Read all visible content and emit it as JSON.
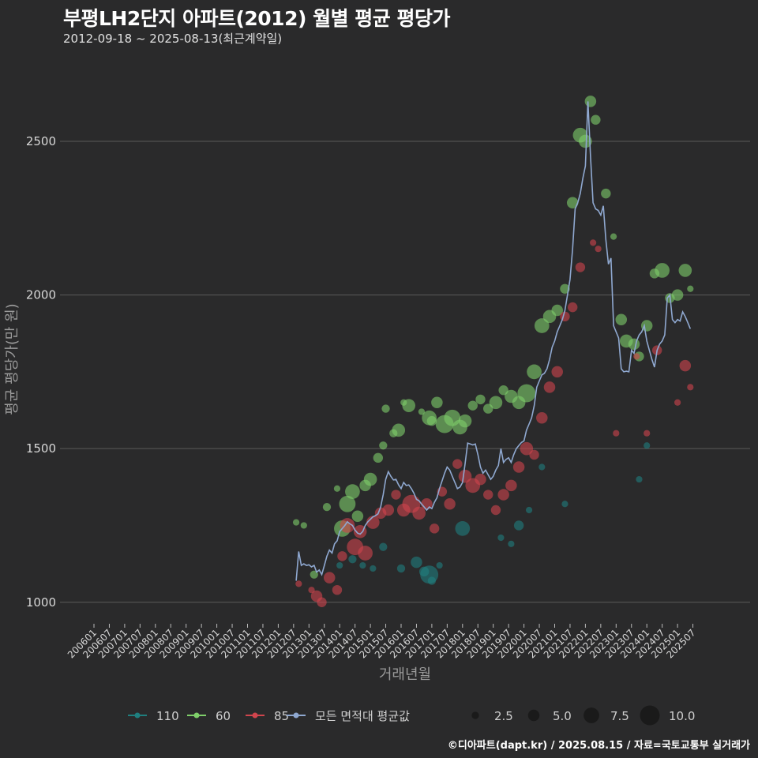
{
  "title": "부평LH2단지 아파트(2012) 월별 평균 평당가",
  "subtitle": "2012-09-18 ~ 2025-08-13(최근계약일)",
  "caption": "©디아파트(dapt.kr) / 2025.08.15 / 자료=국토교통부 실거래가",
  "colors": {
    "background": "#2a2a2b",
    "grid": "#5a5a5a",
    "s110": "#1f7f7f",
    "s60": "#7fcf6a",
    "s85": "#d0454d",
    "avg": "#8fa8d0"
  },
  "chart_data": {
    "type": "scatter",
    "xlabel": "거래년월",
    "ylabel": "평균 평당가(만 원)",
    "yticks": [
      1000,
      1500,
      2000,
      2500
    ],
    "ylim": [
      930,
      2780
    ],
    "x_tick_labels": [
      "200601",
      "200607",
      "200701",
      "200707",
      "200801",
      "200807",
      "200901",
      "200907",
      "201001",
      "201007",
      "201101",
      "201107",
      "201201",
      "201207",
      "201301",
      "201307",
      "201401",
      "201407",
      "201501",
      "201507",
      "201601",
      "201607",
      "201701",
      "201707",
      "201801",
      "201807",
      "201901",
      "201907",
      "202001",
      "202007",
      "202101",
      "202107",
      "202201",
      "202207",
      "202301",
      "202307",
      "202401",
      "202407",
      "202501",
      "202507"
    ],
    "legend_series": [
      {
        "name": "110",
        "color": "#1f7f7f"
      },
      {
        "name": "60",
        "color": "#7fcf6a"
      },
      {
        "name": "85",
        "color": "#d0454d"
      },
      {
        "name": "모든 면적대 평균값",
        "color": "#8fa8d0"
      }
    ],
    "legend_sizes": [
      "2.5",
      "5.0",
      "7.5",
      "10.0"
    ],
    "size_values": [
      2.5,
      5.0,
      7.5,
      10.0
    ],
    "series": [
      {
        "name": "110",
        "points": [
          [
            "2014-01",
            1120,
            2
          ],
          [
            "2014-06",
            1140,
            3
          ],
          [
            "2014-10",
            1120,
            2
          ],
          [
            "2015-02",
            1110,
            2
          ],
          [
            "2015-06",
            1180,
            3
          ],
          [
            "2016-01",
            1110,
            3
          ],
          [
            "2016-07",
            1130,
            5
          ],
          [
            "2016-10",
            1100,
            4
          ],
          [
            "2016-12",
            1090,
            9
          ],
          [
            "2017-01",
            1070,
            3
          ],
          [
            "2017-04",
            1120,
            2
          ],
          [
            "2018-01",
            1240,
            7
          ],
          [
            "2019-04",
            1210,
            2
          ],
          [
            "2019-08",
            1190,
            2
          ],
          [
            "2019-11",
            1250,
            4
          ],
          [
            "2020-03",
            1300,
            2
          ],
          [
            "2020-08",
            1440,
            2
          ],
          [
            "2021-05",
            1320,
            2
          ],
          [
            "2023-10",
            1400,
            2
          ],
          [
            "2024-01",
            1510,
            2
          ]
        ]
      },
      {
        "name": "60",
        "points": [
          [
            "2012-08",
            1260,
            2
          ],
          [
            "2012-11",
            1250,
            2
          ],
          [
            "2013-03",
            1090,
            3
          ],
          [
            "2013-08",
            1310,
            3
          ],
          [
            "2013-12",
            1370,
            2
          ],
          [
            "2014-02",
            1240,
            8
          ],
          [
            "2014-04",
            1320,
            8
          ],
          [
            "2014-06",
            1360,
            7
          ],
          [
            "2014-08",
            1280,
            5
          ],
          [
            "2014-11",
            1380,
            5
          ],
          [
            "2015-01",
            1400,
            6
          ],
          [
            "2015-04",
            1470,
            4
          ],
          [
            "2015-06",
            1510,
            3
          ],
          [
            "2015-07",
            1630,
            3
          ],
          [
            "2015-10",
            1550,
            3
          ],
          [
            "2015-12",
            1560,
            6
          ],
          [
            "2016-02",
            1650,
            2
          ],
          [
            "2016-04",
            1640,
            6
          ],
          [
            "2016-09",
            1620,
            2
          ],
          [
            "2016-12",
            1600,
            7
          ],
          [
            "2017-01",
            1590,
            4
          ],
          [
            "2017-03",
            1650,
            5
          ],
          [
            "2017-06",
            1580,
            9
          ],
          [
            "2017-09",
            1600,
            8
          ],
          [
            "2017-12",
            1570,
            7
          ],
          [
            "2018-02",
            1590,
            6
          ],
          [
            "2018-05",
            1640,
            4
          ],
          [
            "2018-08",
            1660,
            4
          ],
          [
            "2018-11",
            1630,
            4
          ],
          [
            "2019-02",
            1650,
            6
          ],
          [
            "2019-05",
            1690,
            4
          ],
          [
            "2019-08",
            1670,
            6
          ],
          [
            "2019-11",
            1650,
            6
          ],
          [
            "2020-02",
            1680,
            9
          ],
          [
            "2020-05",
            1750,
            7
          ],
          [
            "2020-08",
            1900,
            7
          ],
          [
            "2020-11",
            1930,
            6
          ],
          [
            "2021-02",
            1950,
            5
          ],
          [
            "2021-05",
            2020,
            4
          ],
          [
            "2021-08",
            2300,
            5
          ],
          [
            "2021-11",
            2520,
            7
          ],
          [
            "2022-01",
            2500,
            6
          ],
          [
            "2022-03",
            2630,
            5
          ],
          [
            "2022-05",
            2570,
            4
          ],
          [
            "2022-09",
            2330,
            4
          ],
          [
            "2022-12",
            2190,
            2
          ],
          [
            "2023-03",
            1920,
            5
          ],
          [
            "2023-05",
            1850,
            6
          ],
          [
            "2023-08",
            1840,
            5
          ],
          [
            "2023-10",
            1800,
            4
          ],
          [
            "2024-01",
            1900,
            5
          ],
          [
            "2024-04",
            2070,
            4
          ],
          [
            "2024-07",
            2080,
            7
          ],
          [
            "2024-10",
            1990,
            4
          ],
          [
            "2025-01",
            2000,
            5
          ],
          [
            "2025-04",
            2080,
            6
          ],
          [
            "2025-06",
            2020,
            2
          ]
        ]
      },
      {
        "name": "85",
        "points": [
          [
            "2012-09",
            1060,
            2
          ],
          [
            "2013-02",
            1040,
            2
          ],
          [
            "2013-04",
            1020,
            5
          ],
          [
            "2013-06",
            1000,
            4
          ],
          [
            "2013-09",
            1080,
            5
          ],
          [
            "2013-12",
            1040,
            4
          ],
          [
            "2014-02",
            1150,
            4
          ],
          [
            "2014-04",
            1250,
            7
          ],
          [
            "2014-07",
            1180,
            8
          ],
          [
            "2014-09",
            1230,
            6
          ],
          [
            "2014-11",
            1160,
            7
          ],
          [
            "2015-02",
            1260,
            6
          ],
          [
            "2015-05",
            1290,
            5
          ],
          [
            "2015-08",
            1300,
            5
          ],
          [
            "2015-11",
            1350,
            4
          ],
          [
            "2016-02",
            1300,
            6
          ],
          [
            "2016-05",
            1320,
            9
          ],
          [
            "2016-08",
            1290,
            6
          ],
          [
            "2016-11",
            1320,
            5
          ],
          [
            "2017-02",
            1240,
            4
          ],
          [
            "2017-05",
            1360,
            4
          ],
          [
            "2017-08",
            1320,
            5
          ],
          [
            "2017-11",
            1450,
            4
          ],
          [
            "2018-02",
            1410,
            6
          ],
          [
            "2018-05",
            1380,
            7
          ],
          [
            "2018-08",
            1400,
            5
          ],
          [
            "2018-11",
            1350,
            4
          ],
          [
            "2019-02",
            1300,
            4
          ],
          [
            "2019-05",
            1350,
            5
          ],
          [
            "2019-08",
            1380,
            5
          ],
          [
            "2019-11",
            1440,
            5
          ],
          [
            "2020-02",
            1500,
            6
          ],
          [
            "2020-05",
            1480,
            4
          ],
          [
            "2020-08",
            1600,
            5
          ],
          [
            "2020-11",
            1700,
            5
          ],
          [
            "2021-02",
            1750,
            5
          ],
          [
            "2021-05",
            1930,
            4
          ],
          [
            "2021-08",
            1960,
            4
          ],
          [
            "2021-11",
            2090,
            4
          ],
          [
            "2022-04",
            2170,
            2
          ],
          [
            "2022-06",
            2150,
            2
          ],
          [
            "2023-01",
            1550,
            2
          ],
          [
            "2023-09",
            1800,
            2
          ],
          [
            "2024-01",
            1550,
            2
          ],
          [
            "2024-05",
            1820,
            4
          ],
          [
            "2025-01",
            1650,
            2
          ],
          [
            "2025-04",
            1770,
            5
          ],
          [
            "2025-06",
            1700,
            2
          ]
        ]
      }
    ],
    "average": [
      [
        "2012-08",
        1070
      ],
      [
        "2012-09",
        1165
      ],
      [
        "2012-10",
        1120
      ],
      [
        "2012-11",
        1125
      ],
      [
        "2012-12",
        1120
      ],
      [
        "2013-01",
        1122
      ],
      [
        "2013-02",
        1115
      ],
      [
        "2013-03",
        1120
      ],
      [
        "2013-04",
        1098
      ],
      [
        "2013-05",
        1105
      ],
      [
        "2013-06",
        1090
      ],
      [
        "2013-07",
        1120
      ],
      [
        "2013-08",
        1150
      ],
      [
        "2013-09",
        1170
      ],
      [
        "2013-10",
        1160
      ],
      [
        "2013-11",
        1190
      ],
      [
        "2013-12",
        1200
      ],
      [
        "2014-01",
        1230
      ],
      [
        "2014-02",
        1240
      ],
      [
        "2014-03",
        1250
      ],
      [
        "2014-04",
        1262
      ],
      [
        "2014-05",
        1255
      ],
      [
        "2014-06",
        1250
      ],
      [
        "2014-07",
        1235
      ],
      [
        "2014-08",
        1225
      ],
      [
        "2014-09",
        1222
      ],
      [
        "2014-10",
        1230
      ],
      [
        "2014-11",
        1250
      ],
      [
        "2014-12",
        1262
      ],
      [
        "2015-01",
        1270
      ],
      [
        "2015-02",
        1278
      ],
      [
        "2015-03",
        1282
      ],
      [
        "2015-04",
        1288
      ],
      [
        "2015-05",
        1310
      ],
      [
        "2015-06",
        1350
      ],
      [
        "2015-07",
        1400
      ],
      [
        "2015-08",
        1425
      ],
      [
        "2015-09",
        1410
      ],
      [
        "2015-10",
        1398
      ],
      [
        "2015-11",
        1400
      ],
      [
        "2015-12",
        1382
      ],
      [
        "2016-01",
        1370
      ],
      [
        "2016-02",
        1390
      ],
      [
        "2016-03",
        1380
      ],
      [
        "2016-04",
        1382
      ],
      [
        "2016-05",
        1370
      ],
      [
        "2016-06",
        1355
      ],
      [
        "2016-07",
        1335
      ],
      [
        "2016-08",
        1330
      ],
      [
        "2016-09",
        1320
      ],
      [
        "2016-10",
        1310
      ],
      [
        "2016-11",
        1300
      ],
      [
        "2016-12",
        1310
      ],
      [
        "2017-01",
        1305
      ],
      [
        "2017-02",
        1325
      ],
      [
        "2017-03",
        1340
      ],
      [
        "2017-04",
        1370
      ],
      [
        "2017-05",
        1395
      ],
      [
        "2017-06",
        1420
      ],
      [
        "2017-07",
        1440
      ],
      [
        "2017-08",
        1430
      ],
      [
        "2017-09",
        1410
      ],
      [
        "2017-10",
        1390
      ],
      [
        "2017-11",
        1370
      ],
      [
        "2017-12",
        1375
      ],
      [
        "2018-01",
        1390
      ],
      [
        "2018-02",
        1450
      ],
      [
        "2018-03",
        1518
      ],
      [
        "2018-04",
        1515
      ],
      [
        "2018-05",
        1512
      ],
      [
        "2018-06",
        1515
      ],
      [
        "2018-07",
        1480
      ],
      [
        "2018-08",
        1440
      ],
      [
        "2018-09",
        1420
      ],
      [
        "2018-10",
        1430
      ],
      [
        "2018-11",
        1415
      ],
      [
        "2018-12",
        1400
      ],
      [
        "2019-01",
        1410
      ],
      [
        "2019-02",
        1430
      ],
      [
        "2019-03",
        1445
      ],
      [
        "2019-04",
        1500
      ],
      [
        "2019-05",
        1455
      ],
      [
        "2019-06",
        1465
      ],
      [
        "2019-07",
        1470
      ],
      [
        "2019-08",
        1455
      ],
      [
        "2019-09",
        1480
      ],
      [
        "2019-10",
        1500
      ],
      [
        "2019-11",
        1510
      ],
      [
        "2019-12",
        1520
      ],
      [
        "2020-01",
        1525
      ],
      [
        "2020-02",
        1560
      ],
      [
        "2020-03",
        1580
      ],
      [
        "2020-04",
        1600
      ],
      [
        "2020-05",
        1640
      ],
      [
        "2020-06",
        1700
      ],
      [
        "2020-07",
        1720
      ],
      [
        "2020-08",
        1740
      ],
      [
        "2020-09",
        1745
      ],
      [
        "2020-10",
        1760
      ],
      [
        "2020-11",
        1790
      ],
      [
        "2020-12",
        1830
      ],
      [
        "2021-01",
        1850
      ],
      [
        "2021-02",
        1880
      ],
      [
        "2021-03",
        1900
      ],
      [
        "2021-04",
        1920
      ],
      [
        "2021-05",
        1950
      ],
      [
        "2021-06",
        2000
      ],
      [
        "2021-07",
        2050
      ],
      [
        "2021-08",
        2150
      ],
      [
        "2021-09",
        2280
      ],
      [
        "2021-10",
        2300
      ],
      [
        "2021-11",
        2330
      ],
      [
        "2021-12",
        2380
      ],
      [
        "2022-01",
        2420
      ],
      [
        "2022-02",
        2630
      ],
      [
        "2022-03",
        2450
      ],
      [
        "2022-04",
        2300
      ],
      [
        "2022-05",
        2280
      ],
      [
        "2022-06",
        2275
      ],
      [
        "2022-07",
        2260
      ],
      [
        "2022-08",
        2290
      ],
      [
        "2022-09",
        2180
      ],
      [
        "2022-10",
        2100
      ],
      [
        "2022-11",
        2120
      ],
      [
        "2022-12",
        1900
      ],
      [
        "2023-01",
        1880
      ],
      [
        "2023-02",
        1860
      ],
      [
        "2023-03",
        1760
      ],
      [
        "2023-04",
        1750
      ],
      [
        "2023-05",
        1752
      ],
      [
        "2023-06",
        1750
      ],
      [
        "2023-07",
        1820
      ],
      [
        "2023-08",
        1810
      ],
      [
        "2023-09",
        1850
      ],
      [
        "2023-10",
        1870
      ],
      [
        "2023-11",
        1880
      ],
      [
        "2023-12",
        1900
      ],
      [
        "2024-01",
        1850
      ],
      [
        "2024-02",
        1820
      ],
      [
        "2024-03",
        1790
      ],
      [
        "2024-04",
        1765
      ],
      [
        "2024-05",
        1820
      ],
      [
        "2024-06",
        1840
      ],
      [
        "2024-07",
        1850
      ],
      [
        "2024-08",
        1870
      ],
      [
        "2024-09",
        1990
      ],
      [
        "2024-10",
        2000
      ],
      [
        "2024-11",
        1920
      ],
      [
        "2024-12",
        1910
      ],
      [
        "2025-01",
        1920
      ],
      [
        "2025-02",
        1915
      ],
      [
        "2025-03",
        1945
      ],
      [
        "2025-04",
        1930
      ],
      [
        "2025-05",
        1910
      ],
      [
        "2025-06",
        1890
      ]
    ]
  }
}
